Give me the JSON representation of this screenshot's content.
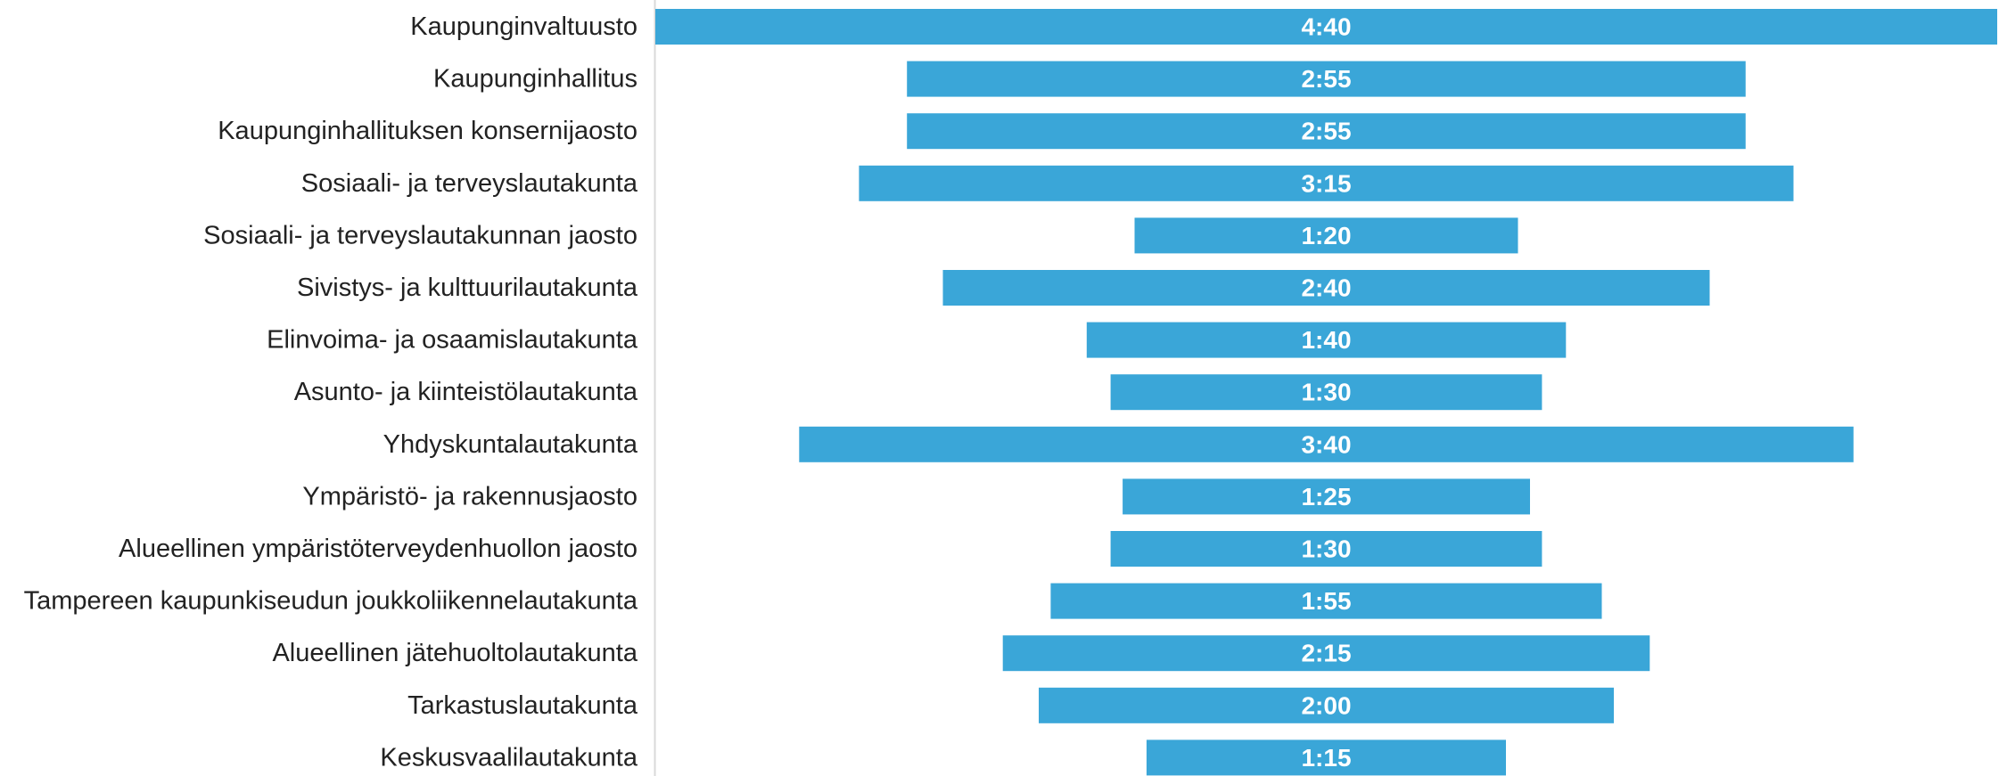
{
  "chart_data": {
    "type": "bar",
    "orientation": "horizontal",
    "alignment": "centered",
    "title": "",
    "xlabel": "",
    "ylabel": "",
    "grid": false,
    "legend": "none",
    "bar_color": "#3aa6d8",
    "categories": [
      "Kaupunginvaltuusto",
      "Kaupunginhallitus",
      "Kaupunginhallituksen konsernijaosto",
      "Sosiaali- ja terveyslautakunta",
      "Sosiaali- ja terveyslautakunnan jaosto",
      "Sivistys- ja kulttuurilautakunta",
      "Elinvoima- ja osaamislautakunta",
      "Asunto- ja kiinteistölautakunta",
      "Yhdyskuntalautakunta",
      "Ympäristö- ja rakennusjaosto",
      "Alueellinen ympäristöterveydenhuollon jaosto",
      "Tampereen kaupunkiseudun joukkoliikennelautakunta",
      "Alueellinen jätehuoltolautakunta",
      "Tarkastuslautakunta",
      "Keskusvaalilautakunta"
    ],
    "values": [
      280,
      175,
      175,
      195,
      80,
      160,
      100,
      90,
      220,
      85,
      90,
      115,
      135,
      120,
      75
    ],
    "value_labels": [
      "4:40",
      "2:55",
      "2:55",
      "3:15",
      "1:20",
      "2:40",
      "1:40",
      "1:30",
      "3:40",
      "1:25",
      "1:30",
      "1:55",
      "2:15",
      "2:00",
      "1:15"
    ],
    "value_unit": "h:mm"
  }
}
